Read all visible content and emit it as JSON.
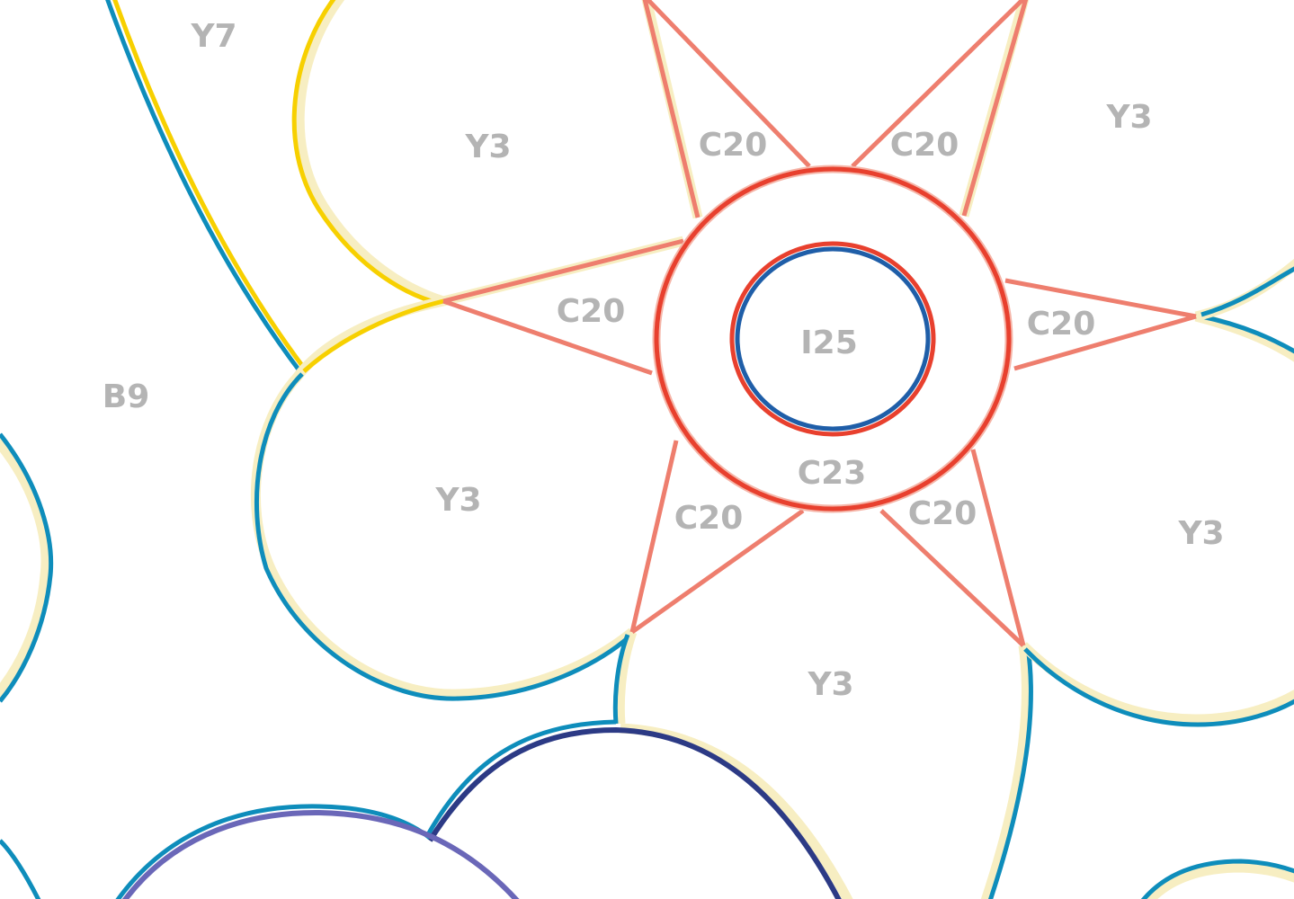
{
  "page": {
    "type": "color-by-number"
  },
  "colors": {
    "label": "#b4b4b4",
    "ring": "#e8402e",
    "center": "#1f5ea8",
    "petal_outline_blue": "#0e8dbb",
    "petal_outline_yellow": "#f7d000",
    "star": "#ee7e6e",
    "navy": "#2c3a85",
    "purple": "#6a67b8"
  },
  "regions": [
    {
      "code": "Y7"
    },
    {
      "code": "Y3"
    },
    {
      "code": "C20"
    },
    {
      "code": "C20"
    },
    {
      "code": "Y3"
    },
    {
      "code": "C20"
    },
    {
      "code": "I25"
    },
    {
      "code": "C20"
    },
    {
      "code": "B9"
    },
    {
      "code": "Y3"
    },
    {
      "code": "C23"
    },
    {
      "code": "C20"
    },
    {
      "code": "C20"
    },
    {
      "code": "Y3"
    },
    {
      "code": "Y3"
    }
  ]
}
